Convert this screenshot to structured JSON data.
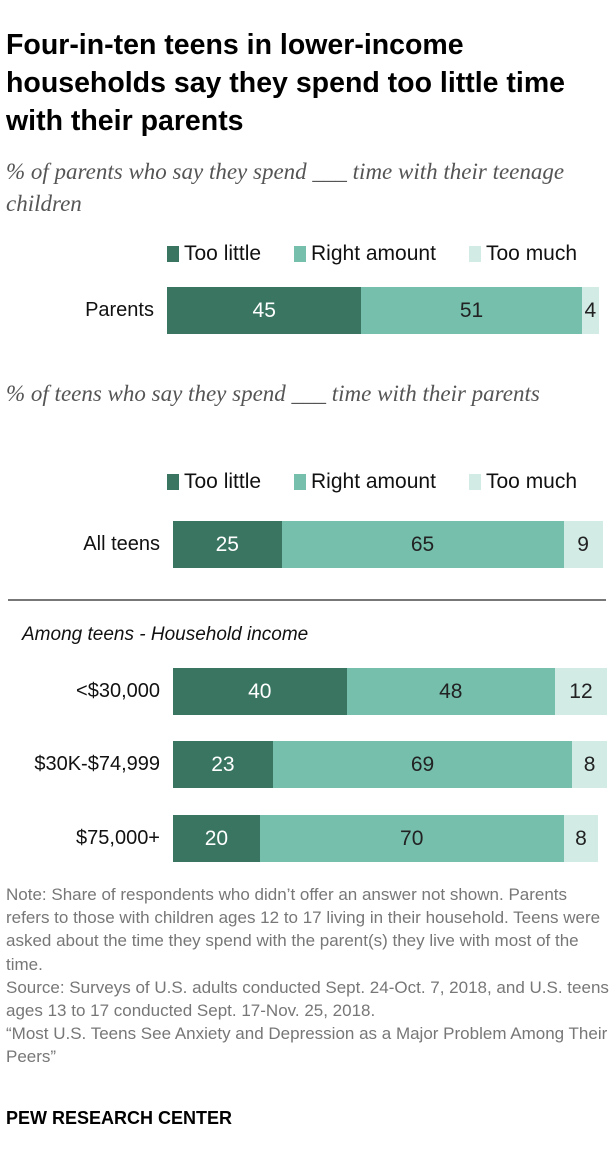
{
  "title": "Four-in-ten teens in lower-income households say they spend too little time with their parents",
  "panels": [
    {
      "subtitle": "% of parents who say they spend ___ time with their teenage children",
      "legend": [
        "Too little",
        "Right amount",
        "Too much"
      ]
    },
    {
      "subtitle": "% of teens who say they spend ___ time with their parents",
      "legend": [
        "Too little",
        "Right amount",
        "Too much"
      ]
    }
  ],
  "group_label": "Among teens - Household income",
  "chart_data": {
    "type": "bar",
    "orientation": "horizontal",
    "stacked": true,
    "series_names": [
      "Too little",
      "Right amount",
      "Too much"
    ],
    "colors": {
      "too_little": "#3a7562",
      "right_amount": "#75bfac",
      "too_much": "#d2ebe5"
    },
    "rows": [
      {
        "label": "Parents",
        "values": [
          45,
          51,
          4
        ]
      },
      {
        "label": "All teens",
        "values": [
          25,
          65,
          9
        ]
      },
      {
        "label": "<$30,000",
        "values": [
          40,
          48,
          12
        ]
      },
      {
        "label": "$30K-$74,999",
        "values": [
          23,
          69,
          8
        ]
      },
      {
        "label": "$75,000+",
        "values": [
          20,
          70,
          8
        ]
      }
    ]
  },
  "note": [
    "Note: Share of respondents who didn’t offer an answer not shown. Parents refers to those with children ages 12 to 17 living in their household. Teens were asked about the time they spend with the parent(s) they live with most of the time.",
    "Source: Surveys of U.S. adults conducted Sept. 24-Oct. 7, 2018, and U.S. teens ages 13 to 17 conducted Sept. 17-Nov. 25, 2018.",
    "“Most U.S. Teens See Anxiety and Depression as a Major Problem Among Their Peers”"
  ],
  "footer": "PEW RESEARCH CENTER"
}
